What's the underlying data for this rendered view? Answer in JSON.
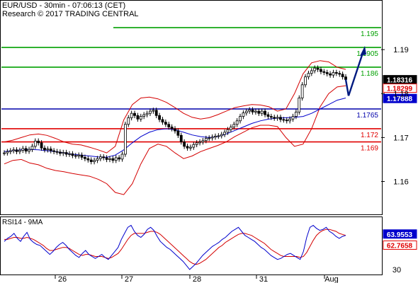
{
  "header": {
    "line1": "EUR/USD - 30min - 07:06:13 (CET)",
    "line2": "Research © 2017 TRADING CENTRAL"
  },
  "rsi_header": "RSI14 - 9MA",
  "colors": {
    "candle": "#000000",
    "bollinger": "#d40000",
    "ma_blue": "#0000cc",
    "support": "#e00000",
    "resistance": "#00a000",
    "pivot": "#0000aa",
    "forecast_arrow": "#001a80",
    "price_tag_dark": "#000000",
    "price_tag_red": "#e00000",
    "price_tag_blue": "#0000cc"
  },
  "chart_data": [
    {
      "type": "candlestick",
      "instrument": "EUR/USD",
      "timeframe": "30min",
      "x_tick_labels": [
        "26",
        "27",
        "28",
        "31",
        "Aug"
      ],
      "y_tick_labels": [
        "1.19",
        "1.18",
        "1.17",
        "1.16"
      ],
      "y_ticks": [
        1.19,
        1.18,
        1.17,
        1.16
      ],
      "ylim": [
        1.153,
        1.2
      ],
      "grid": false,
      "price_close_series": [
        1.1665,
        1.1668,
        1.167,
        1.1672,
        1.1668,
        1.1671,
        1.1675,
        1.1669,
        1.1673,
        1.168,
        1.1692,
        1.1688,
        1.1676,
        1.1672,
        1.1674,
        1.167,
        1.1668,
        1.1667,
        1.1664,
        1.1666,
        1.1662,
        1.1663,
        1.1659,
        1.1658,
        1.166,
        1.1655,
        1.1652,
        1.1649,
        1.1645,
        1.1648,
        1.1652,
        1.1656,
        1.1654,
        1.165,
        1.1652,
        1.1648,
        1.1654,
        1.1651,
        1.1662,
        1.173,
        1.1745,
        1.1755,
        1.175,
        1.1742,
        1.1748,
        1.1752,
        1.1755,
        1.176,
        1.1762,
        1.175,
        1.1741,
        1.1735,
        1.173,
        1.1724,
        1.172,
        1.1715,
        1.1705,
        1.169,
        1.168,
        1.1676,
        1.1678,
        1.1684,
        1.1688,
        1.169,
        1.1693,
        1.1698,
        1.1699,
        1.1701,
        1.1703,
        1.1704,
        1.1707,
        1.1712,
        1.1718,
        1.1724,
        1.173,
        1.1738,
        1.1748,
        1.1756,
        1.176,
        1.1763,
        1.1758,
        1.176,
        1.1755,
        1.176,
        1.1752,
        1.1748,
        1.1746,
        1.1744,
        1.1746,
        1.1741,
        1.174,
        1.1738,
        1.1742,
        1.1748,
        1.1758,
        1.179,
        1.182,
        1.1838,
        1.1846,
        1.1852,
        1.1858,
        1.1855,
        1.185,
        1.1848,
        1.1845,
        1.1842,
        1.1848,
        1.1846,
        1.1844,
        1.1838,
        1.1832
      ],
      "bollinger_upper": [
        1.169,
        1.1694,
        1.17,
        1.1706,
        1.1708,
        1.1705,
        1.1698,
        1.169,
        1.1685,
        1.1683,
        1.1678,
        1.1672,
        1.1665,
        1.168,
        1.174,
        1.1775,
        1.179,
        1.1792,
        1.1788,
        1.178,
        1.1768,
        1.1755,
        1.1746,
        1.1742,
        1.1745,
        1.1752,
        1.176,
        1.1768,
        1.1772,
        1.1775,
        1.1774,
        1.177,
        1.176,
        1.1765,
        1.18,
        1.1845,
        1.187,
        1.1875,
        1.1872,
        1.186,
        1.1855
      ],
      "bollinger_lower": [
        1.164,
        1.1648,
        1.165,
        1.1642,
        1.1638,
        1.163,
        1.1625,
        1.1622,
        1.1618,
        1.1615,
        1.1612,
        1.1605,
        1.1595,
        1.1575,
        1.157,
        1.1595,
        1.164,
        1.1675,
        1.1685,
        1.168,
        1.1665,
        1.1652,
        1.1658,
        1.1668,
        1.1675,
        1.1682,
        1.169,
        1.1702,
        1.1712,
        1.1722,
        1.1728,
        1.1728,
        1.1725,
        1.17,
        1.168,
        1.1685,
        1.172,
        1.177,
        1.18,
        1.1815,
        1.1818
      ],
      "moving_average": [
        1.1668,
        1.167,
        1.1672,
        1.1673,
        1.1672,
        1.167,
        1.1668,
        1.1665,
        1.1662,
        1.166,
        1.1658,
        1.1656,
        1.1655,
        1.166,
        1.1672,
        1.1688,
        1.1702,
        1.1712,
        1.1718,
        1.172,
        1.1718,
        1.1712,
        1.1706,
        1.1702,
        1.17,
        1.1702,
        1.1708,
        1.1716,
        1.1724,
        1.1732,
        1.1738,
        1.1742,
        1.1744,
        1.1745,
        1.1746,
        1.1748,
        1.1755,
        1.1765,
        1.1775,
        1.1785,
        1.179
      ],
      "horizontal_levels": [
        {
          "label": "1.195",
          "value": 1.195,
          "role": "resistance"
        },
        {
          "label": "1.1905",
          "value": 1.1905,
          "role": "resistance"
        },
        {
          "label": "1.186",
          "value": 1.186,
          "role": "resistance"
        },
        {
          "label": "1.1765",
          "value": 1.1765,
          "role": "pivot"
        },
        {
          "label": "1.172",
          "value": 1.172,
          "role": "support"
        },
        {
          "label": "1.169",
          "value": 1.169,
          "role": "support"
        }
      ],
      "price_tags": [
        {
          "label": "1.18316",
          "value": 1.18316,
          "style": "dark"
        },
        {
          "label": "1.18299",
          "value": 1.18299,
          "style": "red"
        },
        {
          "label": "1.17888",
          "value": 1.17888,
          "style": "blue"
        }
      ],
      "forecast_arrow": {
        "from": 1.1795,
        "to": 1.1905
      }
    },
    {
      "type": "line",
      "title": "RSI14 - 9MA",
      "y_tick_labels": [
        "30"
      ],
      "ylim": [
        25,
        80
      ],
      "rsi_series": [
        58,
        61,
        63,
        66,
        61,
        58,
        63,
        67,
        60,
        57,
        55,
        54,
        51,
        48,
        45,
        48,
        52,
        55,
        57,
        54,
        50,
        47,
        44,
        42,
        46,
        49,
        45,
        43,
        41,
        43,
        45,
        42,
        40,
        44,
        48,
        52,
        60,
        66,
        72,
        74,
        68,
        64,
        62,
        65,
        70,
        72,
        69,
        63,
        58,
        55,
        52,
        50,
        47,
        44,
        41,
        38,
        34,
        30,
        33,
        36,
        40,
        44,
        47,
        50,
        53,
        55,
        57,
        60,
        62,
        65,
        68,
        70,
        72,
        68,
        64,
        62,
        60,
        58,
        55,
        52,
        50,
        47,
        44,
        42,
        40,
        41,
        43,
        45,
        46,
        44,
        42,
        40,
        48,
        62,
        72,
        74,
        71,
        69,
        70,
        72,
        68,
        66,
        63,
        61,
        63,
        64
      ],
      "rsi_ma_series": [
        60,
        60,
        61,
        62,
        62,
        61,
        61,
        62,
        61,
        60,
        58,
        56,
        54,
        51,
        49,
        49,
        50,
        51,
        52,
        52,
        51,
        49,
        47,
        45,
        44,
        45,
        45,
        44,
        43,
        43,
        43,
        42,
        41,
        42,
        44,
        46,
        50,
        55,
        60,
        64,
        66,
        66,
        66,
        66,
        67,
        68,
        68,
        67,
        65,
        62,
        59,
        56,
        53,
        50,
        47,
        44,
        41,
        38,
        36,
        35,
        36,
        38,
        40,
        43,
        46,
        49,
        52,
        54,
        57,
        59,
        61,
        63,
        65,
        66,
        66,
        65,
        64,
        62,
        60,
        58,
        56,
        53,
        50,
        48,
        46,
        44,
        43,
        43,
        43,
        43,
        43,
        42,
        43,
        47,
        53,
        59,
        64,
        67,
        69,
        70,
        70,
        69,
        68,
        66,
        65,
        64
      ],
      "rsi_tags": [
        {
          "label": "63.9553",
          "value": 63.9553,
          "style": "blue"
        },
        {
          "label": "62.7658",
          "value": 62.7658,
          "style": "red"
        }
      ]
    }
  ]
}
